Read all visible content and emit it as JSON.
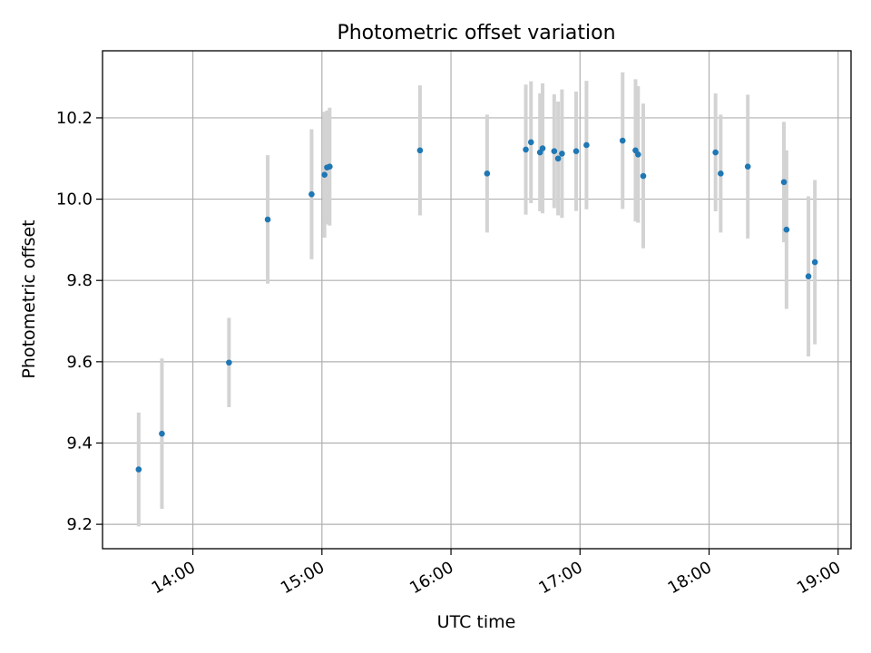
{
  "chart_data": {
    "type": "scatter",
    "title": "Photometric offset variation",
    "xlabel": "UTC time",
    "ylabel": "Photometric offset",
    "x_unit": "hour",
    "xlim": [
      13.3,
      19.1
    ],
    "ylim": [
      9.14,
      10.365
    ],
    "grid": true,
    "x_ticks": [
      {
        "value": 14,
        "label": "14:00"
      },
      {
        "value": 15,
        "label": "15:00"
      },
      {
        "value": 16,
        "label": "16:00"
      },
      {
        "value": 17,
        "label": "17:00"
      },
      {
        "value": 18,
        "label": "18:00"
      },
      {
        "value": 19,
        "label": "19:00"
      }
    ],
    "y_ticks": [
      {
        "value": 9.2,
        "label": "9.2"
      },
      {
        "value": 9.4,
        "label": "9.4"
      },
      {
        "value": 9.6,
        "label": "9.6"
      },
      {
        "value": 9.8,
        "label": "9.8"
      },
      {
        "value": 10.0,
        "label": "10.0"
      },
      {
        "value": 10.2,
        "label": "10.2"
      }
    ],
    "colors": {
      "marker": "#1f77b4",
      "errorbar": "#d3d3d3",
      "grid": "#b0b0b0"
    },
    "points": [
      {
        "x": 13.58,
        "y": 9.335,
        "err": 0.14
      },
      {
        "x": 13.76,
        "y": 9.423,
        "err": 0.185
      },
      {
        "x": 14.28,
        "y": 9.598,
        "err": 0.11
      },
      {
        "x": 14.58,
        "y": 9.95,
        "err": 0.158
      },
      {
        "x": 14.92,
        "y": 10.012,
        "err": 0.16
      },
      {
        "x": 15.02,
        "y": 10.06,
        "err": 0.155
      },
      {
        "x": 15.04,
        "y": 10.078,
        "err": 0.14
      },
      {
        "x": 15.06,
        "y": 10.08,
        "err": 0.145
      },
      {
        "x": 15.76,
        "y": 10.12,
        "err": 0.16
      },
      {
        "x": 16.28,
        "y": 10.063,
        "err": 0.145
      },
      {
        "x": 16.58,
        "y": 10.122,
        "err": 0.16
      },
      {
        "x": 16.62,
        "y": 10.14,
        "err": 0.15
      },
      {
        "x": 16.69,
        "y": 10.115,
        "err": 0.145
      },
      {
        "x": 16.71,
        "y": 10.125,
        "err": 0.16
      },
      {
        "x": 16.8,
        "y": 10.118,
        "err": 0.14
      },
      {
        "x": 16.83,
        "y": 10.1,
        "err": 0.14
      },
      {
        "x": 16.86,
        "y": 10.112,
        "err": 0.158
      },
      {
        "x": 16.97,
        "y": 10.118,
        "err": 0.147
      },
      {
        "x": 17.05,
        "y": 10.133,
        "err": 0.158
      },
      {
        "x": 17.33,
        "y": 10.144,
        "err": 0.168
      },
      {
        "x": 17.43,
        "y": 10.12,
        "err": 0.175
      },
      {
        "x": 17.45,
        "y": 10.11,
        "err": 0.168
      },
      {
        "x": 17.49,
        "y": 10.057,
        "err": 0.178
      },
      {
        "x": 18.05,
        "y": 10.115,
        "err": 0.145
      },
      {
        "x": 18.09,
        "y": 10.063,
        "err": 0.145
      },
      {
        "x": 18.3,
        "y": 10.08,
        "err": 0.177
      },
      {
        "x": 18.58,
        "y": 10.042,
        "err": 0.148
      },
      {
        "x": 18.6,
        "y": 9.925,
        "err": 0.195
      },
      {
        "x": 18.77,
        "y": 9.81,
        "err": 0.197
      },
      {
        "x": 18.82,
        "y": 9.845,
        "err": 0.202
      }
    ]
  }
}
